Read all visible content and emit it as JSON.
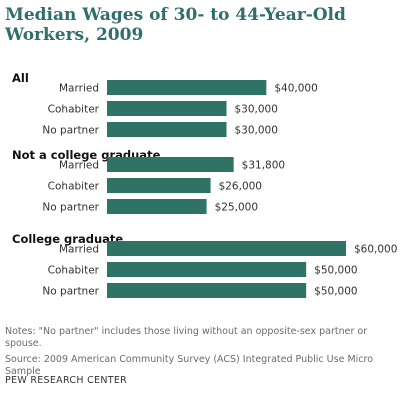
{
  "chart_data": {
    "type": "bar",
    "orientation": "horizontal",
    "title": "Median Wages of 30- to 44-Year-Old Workers, 2009",
    "bar_color": "#2f7366",
    "groups": [
      {
        "name": "All",
        "categories": [
          "Married",
          "Cohabiter",
          "No partner"
        ],
        "values": [
          40000,
          30000,
          30000
        ],
        "labels": [
          "$40,000",
          "$30,000",
          "$30,000"
        ]
      },
      {
        "name": "Not a college graduate",
        "categories": [
          "Married",
          "Cohabiter",
          "No partner"
        ],
        "values": [
          31800,
          26000,
          25000
        ],
        "labels": [
          "$31,800",
          "$26,000",
          "$25,000"
        ]
      },
      {
        "name": "College graduate",
        "categories": [
          "Married",
          "Cohabiter",
          "No partner"
        ],
        "values": [
          60000,
          50000,
          50000
        ],
        "labels": [
          "$60,000",
          "$50,000",
          "$50,000"
        ]
      }
    ],
    "xlim": [
      0,
      60000
    ],
    "grid": false,
    "legend": "none"
  },
  "notes": {
    "note": "Notes: \"No partner\" includes those living without an opposite-sex partner or spouse.",
    "source": "Source: 2009 American Community Survey (ACS) Integrated Public Use Micro Sample"
  },
  "organization": "PEW RESEARCH CENTER"
}
